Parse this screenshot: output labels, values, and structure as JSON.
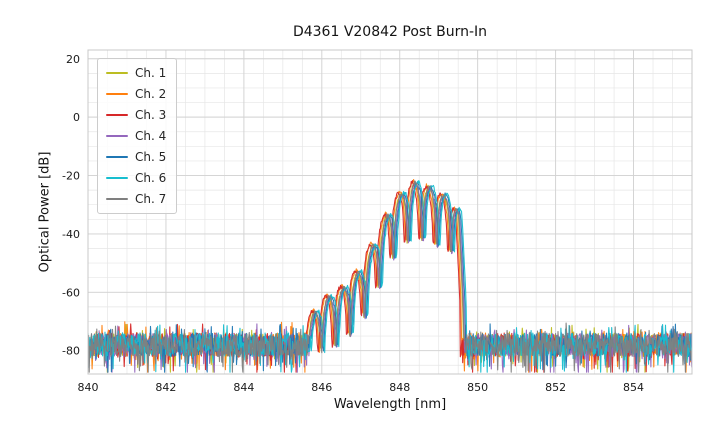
{
  "chart_data": {
    "type": "line",
    "title": "D4361 V20842 Post Burn-In",
    "xlabel": "Wavelength [nm]",
    "ylabel": "Optical Power [dB]",
    "xlim": [
      840,
      855.5
    ],
    "ylim": [
      -88,
      23
    ],
    "xticks": [
      840,
      842,
      844,
      846,
      848,
      850,
      852,
      854
    ],
    "yticks": [
      20,
      0,
      -20,
      -40,
      -60,
      -80
    ],
    "minor_x_step": 0.5,
    "minor_y_step": 5,
    "grid": true,
    "legend_location": "upper left",
    "axes_style": {
      "grid_minor_color": "#e6e6e6",
      "grid_major_color": "#d2d2d2",
      "frame_color": "#c8c8c8",
      "tick_label_color": "#1a1a1a",
      "background": "#ffffff"
    },
    "series": [
      {
        "name": "Ch. 1",
        "color": "#bcbd22",
        "dx": 0.0,
        "dy": 0.0,
        "seed": 101
      },
      {
        "name": "Ch. 2",
        "color": "#ff7f0e",
        "dx": -0.04,
        "dy": 0.6,
        "seed": 202
      },
      {
        "name": "Ch. 3",
        "color": "#d62728",
        "dx": -0.07,
        "dy": 0.2,
        "seed": 303
      },
      {
        "name": "Ch. 4",
        "color": "#9467bd",
        "dx": 0.03,
        "dy": -0.5,
        "seed": 404
      },
      {
        "name": "Ch. 5",
        "color": "#1f77b4",
        "dx": 0.06,
        "dy": 0.0,
        "seed": 505
      },
      {
        "name": "Ch. 6",
        "color": "#17becf",
        "dx": 0.09,
        "dy": 0.4,
        "seed": 606
      },
      {
        "name": "Ch. 7",
        "color": "#7f7f7f",
        "dx": 0.01,
        "dy": 0.0,
        "seed": 707
      }
    ],
    "spectrum_model": {
      "signal_range_nm": [
        845.55,
        849.62
      ],
      "mode_spacing_nm": 0.37,
      "mode_phase_nm": 848.38,
      "ripple_min_ratio": 0.12,
      "signal_jitter_db": 1.4,
      "envelope_points": [
        [
          845.55,
          -72
        ],
        [
          846.0,
          -63
        ],
        [
          846.5,
          -59
        ],
        [
          847.0,
          -52
        ],
        [
          847.4,
          -41
        ],
        [
          847.8,
          -30
        ],
        [
          848.1,
          -25
        ],
        [
          848.38,
          -22.5
        ],
        [
          848.75,
          -24
        ],
        [
          849.1,
          -26.5
        ],
        [
          849.35,
          -28
        ],
        [
          849.5,
          -33
        ],
        [
          849.62,
          -60
        ]
      ],
      "noise_floor_db": -78,
      "noise_amp_db": 4,
      "noise_dip_prob": 0.12,
      "noise_dip_db": 9,
      "noise_spike_prob": 0.1,
      "noise_spike_db": 4,
      "sample_step_nm": 0.015,
      "peak_wavelength_nm": 848.4,
      "peak_power_db": -22
    }
  }
}
